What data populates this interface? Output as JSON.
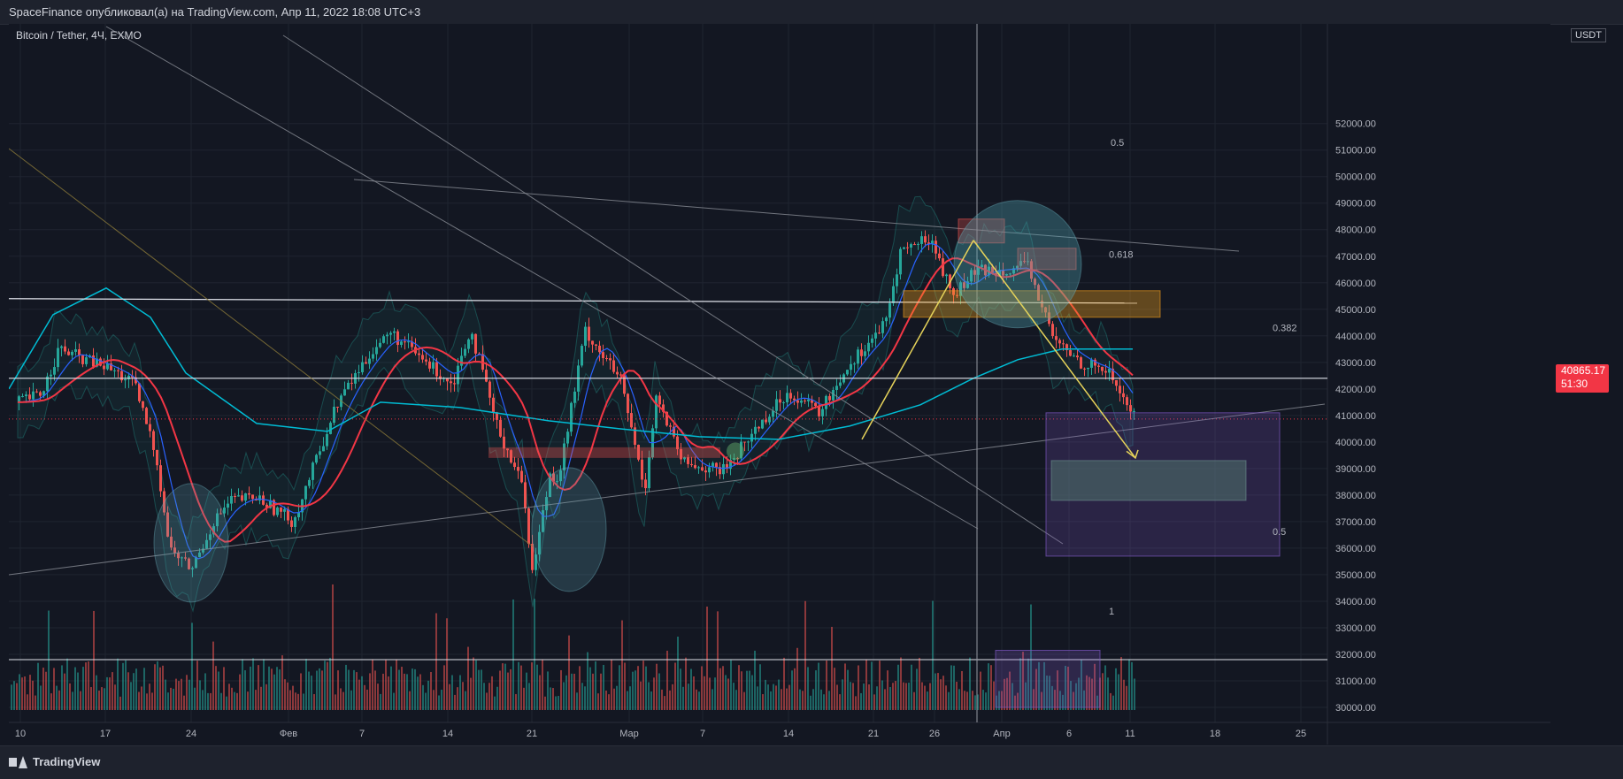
{
  "header": {
    "title": "SpaceFinance опубликовал(а) на TradingView.com, Апр 11, 2022 18:08 UTC+3"
  },
  "symbol": {
    "label": "Bitcoin / Tether, 4Ч, EXMO"
  },
  "price_axis": {
    "currency": "USDT",
    "ticks": [
      "52000.00",
      "51000.00",
      "50000.00",
      "49000.00",
      "48000.00",
      "47000.00",
      "46000.00",
      "45000.00",
      "44000.00",
      "43000.00",
      "42000.00",
      "41000.00",
      "40000.00",
      "39000.00",
      "38000.00",
      "37000.00",
      "36000.00",
      "35000.00",
      "34000.00",
      "33000.00",
      "32000.00",
      "31000.00",
      "30000.00"
    ]
  },
  "time_axis": {
    "ticks": [
      "10",
      "17",
      "24",
      "Фев",
      "7",
      "14",
      "21",
      "Мар",
      "7",
      "14",
      "21",
      "26",
      "Апр",
      "6",
      "11",
      "18",
      "25"
    ]
  },
  "last_price": {
    "value": "40865.17",
    "countdown": "51:30"
  },
  "fib_labels": [
    "0.5",
    "0.618",
    "0.382",
    "0.5",
    "1"
  ],
  "footer": {
    "brand": "TradingView"
  },
  "colors": {
    "up": "#26a69a",
    "down": "#ef5350",
    "ma_fast": "#2962ff",
    "ma_mid": "#f23645",
    "ma_slow": "#00bcd4",
    "arrow": "#e6d35a",
    "zone_orange": "#f7a21b",
    "zone_purple": "#7e57c2"
  },
  "chart_data": {
    "type": "candlestick",
    "title": "Bitcoin / Tether, 4Ч, EXMO",
    "y_unit": "USDT",
    "ylim": [
      29500,
      52200
    ],
    "x_ticks": [
      "10",
      "17",
      "24",
      "Фев",
      "7",
      "14",
      "21",
      "Мар",
      "7",
      "14",
      "21",
      "26",
      "Апр",
      "6",
      "11",
      "18",
      "25"
    ],
    "close_path": [
      [
        "10 Jan",
        41800
      ],
      [
        "12 Jan",
        43500
      ],
      [
        "14 Jan",
        43100
      ],
      [
        "17 Jan",
        42800
      ],
      [
        "19 Jan",
        42200
      ],
      [
        "21 Jan",
        39500
      ],
      [
        "22 Jan",
        36000
      ],
      [
        "24 Jan",
        35200
      ],
      [
        "26 Jan",
        37000
      ],
      [
        "28 Jan",
        37800
      ],
      [
        "31 Jan",
        37900
      ],
      [
        "2 Feb",
        37000
      ],
      [
        "4 Feb",
        41500
      ],
      [
        "7 Feb",
        43500
      ],
      [
        "9 Feb",
        44100
      ],
      [
        "11 Feb",
        43000
      ],
      [
        "14 Feb",
        42200
      ],
      [
        "16 Feb",
        44300
      ],
      [
        "18 Feb",
        40600
      ],
      [
        "21 Feb",
        38300
      ],
      [
        "24 Feb",
        35100
      ],
      [
        "25 Feb",
        38800
      ],
      [
        "28 Feb",
        38700
      ],
      [
        "1 Mar",
        44200
      ],
      [
        "3 Mar",
        42300
      ],
      [
        "7 Mar",
        38200
      ],
      [
        "9 Mar",
        41700
      ],
      [
        "10 Mar",
        39200
      ],
      [
        "14 Mar",
        38900
      ],
      [
        "16 Mar",
        40800
      ],
      [
        "18 Mar",
        41900
      ],
      [
        "21 Mar",
        41100
      ],
      [
        "23 Mar",
        42800
      ],
      [
        "26 Mar",
        44500
      ],
      [
        "28 Mar",
        47200
      ],
      [
        "29 Mar",
        47700
      ],
      [
        "31 Mar",
        45500
      ],
      [
        "1 Apr",
        46400
      ],
      [
        "3 Apr",
        46500
      ],
      [
        "5 Apr",
        46600
      ],
      [
        "6 Apr",
        43800
      ],
      [
        "8 Apr",
        43000
      ],
      [
        "10 Apr",
        42700
      ],
      [
        "11 Apr",
        40865.17
      ]
    ],
    "horizontal_levels": [
      45200,
      42400,
      31800
    ],
    "last_price": 40865.17,
    "fibonacci": [
      0.5,
      0.618,
      0.382,
      0.5,
      1
    ],
    "grid": true
  }
}
